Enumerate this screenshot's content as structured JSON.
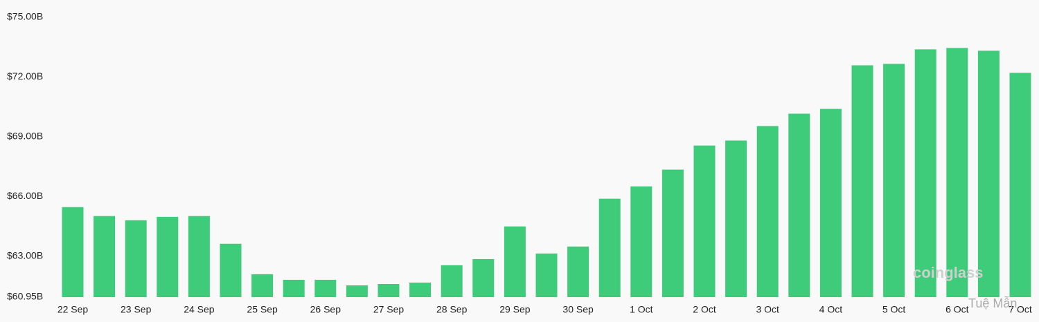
{
  "chart_data": {
    "type": "bar",
    "categories": [
      "22 Sep",
      null,
      "23 Sep",
      null,
      "24 Sep",
      null,
      "25 Sep",
      null,
      "26 Sep",
      null,
      "27 Sep",
      null,
      "28 Sep",
      null,
      "29 Sep",
      null,
      "30 Sep",
      null,
      "1 Oct",
      null,
      "2 Oct",
      null,
      "3 Oct",
      null,
      "4 Oct",
      null,
      "5 Oct",
      null,
      "6 Oct",
      null,
      "7 Oct"
    ],
    "values": [
      65.47,
      65.02,
      64.81,
      64.98,
      65.02,
      63.63,
      62.1,
      61.82,
      61.82,
      61.54,
      61.61,
      61.68,
      62.55,
      62.86,
      64.5,
      63.14,
      63.49,
      65.89,
      66.51,
      67.35,
      68.56,
      68.81,
      69.54,
      70.16,
      70.4,
      72.59,
      72.66,
      73.39,
      73.46,
      73.32,
      72.21
    ],
    "color": "#3ecc7b",
    "ylim": [
      60.95,
      75
    ],
    "yticks": [
      {
        "value": 60.95,
        "label": "$60.95B"
      },
      {
        "value": 63,
        "label": "$63.00B"
      },
      {
        "value": 66,
        "label": "$66.00B"
      },
      {
        "value": 69,
        "label": "$69.00B"
      },
      {
        "value": 72,
        "label": "$72.00B"
      },
      {
        "value": 75,
        "label": "$75.00B"
      }
    ],
    "grid": false,
    "watermarks": [
      "coinglass",
      "Tuệ Mẫn"
    ]
  }
}
